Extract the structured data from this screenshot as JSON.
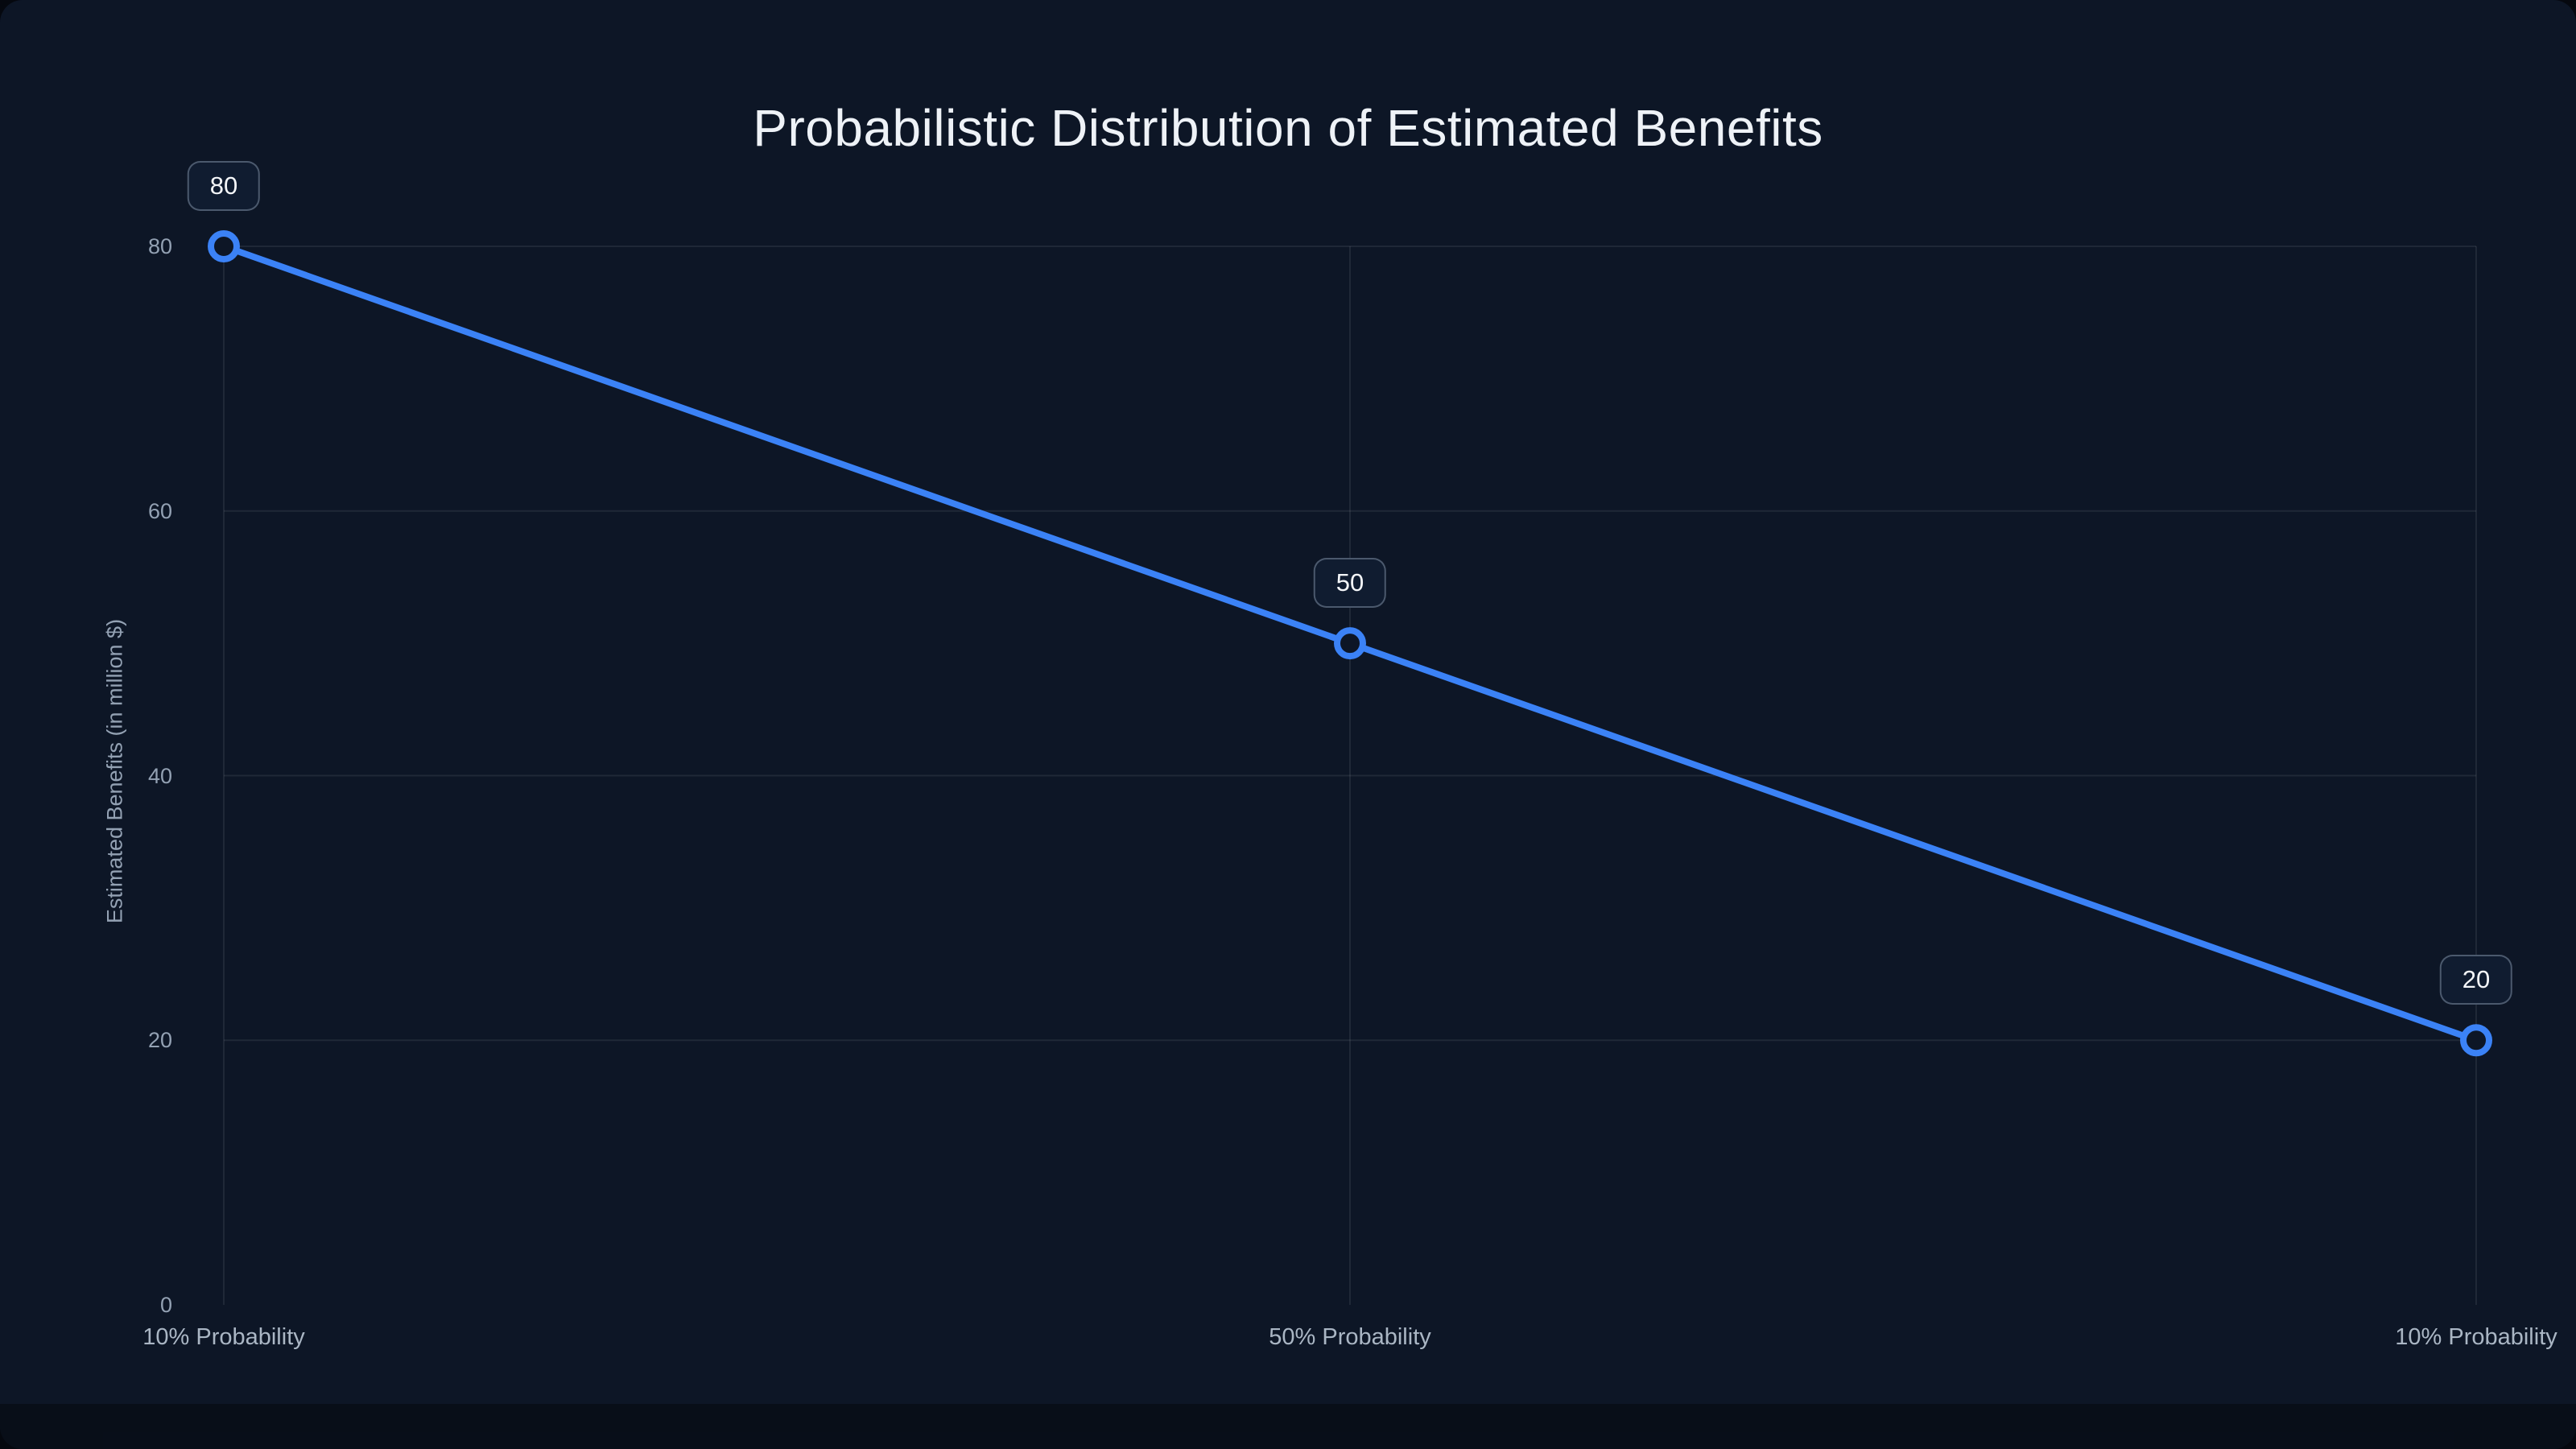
{
  "chart_data": {
    "type": "line",
    "title": "Probabilistic Distribution of Estimated Benefits",
    "categories": [
      "10% Probability",
      "50% Probability",
      "10% Probability"
    ],
    "series": [
      {
        "name": "Estimated Benefits",
        "values": [
          80,
          50,
          20
        ]
      }
    ],
    "point_labels": [
      "80",
      "50",
      "20"
    ],
    "xlabel": "",
    "ylabel": "Estimated Benefits (in million $)",
    "ylim": [
      0,
      80
    ],
    "yticks": [
      0,
      20,
      40,
      60,
      80
    ],
    "grid": true,
    "legend_position": "none",
    "colors": {
      "line": "#3b82f6",
      "marker_fill": "#0d1626",
      "grid_line": "rgba(255,255,255,0.08)",
      "tick_text": "#93a1b3",
      "x_label_text": "#aab6c4",
      "title_text": "#eef2f7",
      "badge_bg": "#101c30",
      "badge_border": "rgba(148,163,184,0.45)",
      "badge_text": "#f4f6f9",
      "background": "#0d1626"
    }
  }
}
